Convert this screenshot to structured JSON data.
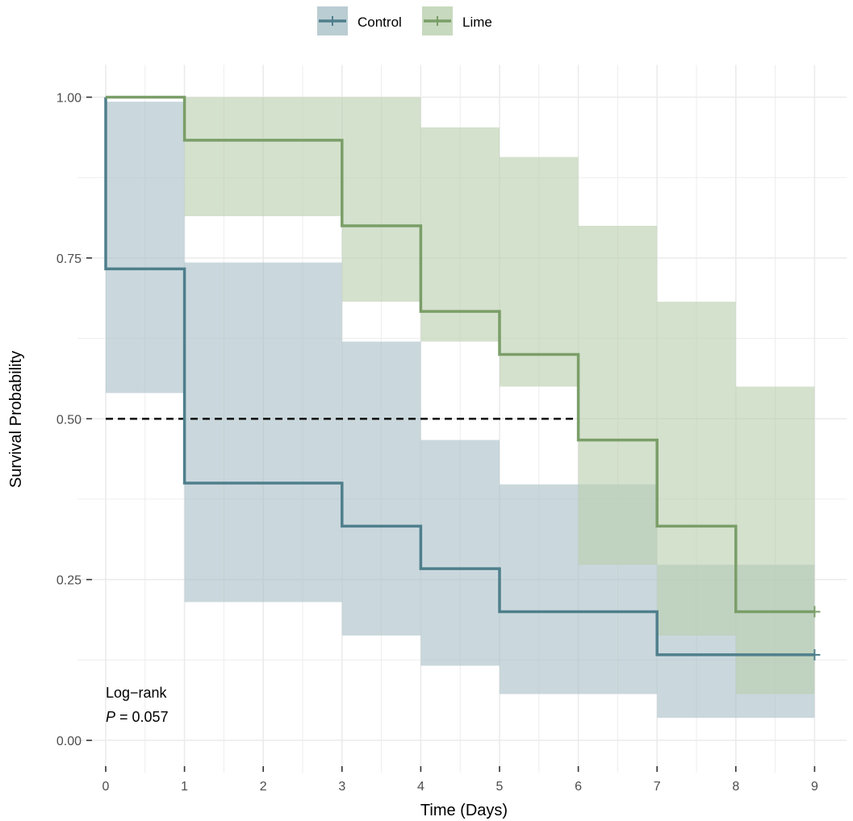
{
  "chart_data": {
    "type": "line",
    "subtype": "kaplan-meier-step",
    "xlabel": "Time (Days)",
    "ylabel": "Survival Probability",
    "xlim": [
      0,
      9
    ],
    "ylim": [
      0,
      1
    ],
    "x_ticks": [
      0,
      1,
      2,
      3,
      4,
      5,
      6,
      7,
      8,
      9
    ],
    "x_tick_labels": [
      "0",
      "1",
      "2",
      "3",
      "4",
      "5",
      "6",
      "7",
      "8",
      "9"
    ],
    "y_ticks": [
      0,
      0.25,
      0.5,
      0.75,
      1
    ],
    "y_tick_labels": [
      "0.00",
      "0.25",
      "0.50",
      "0.75",
      "1.00"
    ],
    "grid": true,
    "legend_position": "top",
    "median_line": {
      "y": 0.5,
      "x_end": 6,
      "style": "dashed"
    },
    "annotation": {
      "line1": "Log−rank",
      "p_label": "P",
      "p_text": " = 0.057"
    },
    "series": [
      {
        "name": "Control",
        "color": "#4f7f8c",
        "band_color": "#a9c0c8",
        "x": [
          0,
          1,
          3,
          4,
          5,
          7,
          9
        ],
        "survival": [
          0.733,
          0.4,
          0.333,
          0.267,
          0.2,
          0.133,
          0.133
        ],
        "lower": [
          0.54,
          0.215,
          0.163,
          0.116,
          0.072,
          0.035,
          0.035
        ],
        "upper": [
          0.993,
          0.743,
          0.62,
          0.467,
          0.398,
          0.273,
          0.163
        ],
        "censor": [
          {
            "x": 9,
            "y": 0.133
          }
        ]
      },
      {
        "name": "Lime",
        "color": "#7a9e68",
        "band_color": "#b9cfae",
        "x": [
          0,
          1,
          3,
          4,
          5,
          6,
          7,
          8,
          9
        ],
        "survival": [
          1.0,
          0.933,
          0.8,
          0.667,
          0.6,
          0.467,
          0.333,
          0.2,
          0.2
        ],
        "lower": [
          1.0,
          0.815,
          0.682,
          0.62,
          0.55,
          0.273,
          0.163,
          0.072,
          0.072
        ],
        "upper": [
          1.0,
          1.0,
          1.0,
          0.953,
          0.907,
          0.8,
          0.682,
          0.55,
          0.55
        ],
        "censor": [
          {
            "x": 9,
            "y": 0.2
          }
        ]
      }
    ]
  }
}
